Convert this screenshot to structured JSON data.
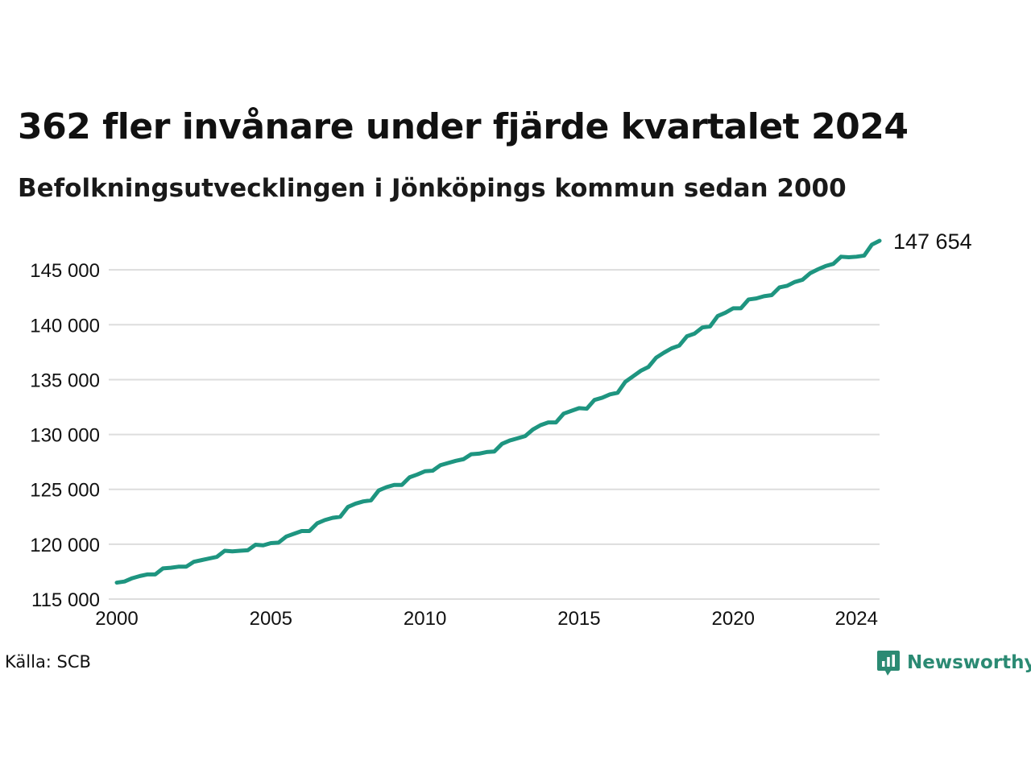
{
  "title": "362 fler invånare under fjärde kvartalet 2024",
  "subtitle": "Befolkningsutvecklingen i Jönköpings kommun sedan 2000",
  "source": "Källa: SCB",
  "logo": {
    "text": "Newsworthy",
    "icon": "newsworthy-logo-icon"
  },
  "colors": {
    "line": "#1e9580",
    "grid": "#dddddd",
    "logo": "#2b8a73"
  },
  "chart_data": {
    "type": "line",
    "title": "362 fler invånare under fjärde kvartalet 2024",
    "subtitle": "Befolkningsutvecklingen i Jönköpings kommun sedan 2000",
    "xlabel": "",
    "ylabel": "",
    "xlim": [
      2000.0,
      2024.75
    ],
    "ylim": [
      115000,
      147654
    ],
    "grid": "horizontal",
    "x_ticks": [
      {
        "value": 2000,
        "label": "2000"
      },
      {
        "value": 2005,
        "label": "2005"
      },
      {
        "value": 2010,
        "label": "2010"
      },
      {
        "value": 2015,
        "label": "2015"
      },
      {
        "value": 2020,
        "label": "2020"
      },
      {
        "value": 2024,
        "label": "2024"
      }
    ],
    "y_ticks": [
      {
        "value": 115000,
        "label": "115 000"
      },
      {
        "value": 120000,
        "label": "120 000"
      },
      {
        "value": 125000,
        "label": "125 000"
      },
      {
        "value": 130000,
        "label": "130 000"
      },
      {
        "value": 135000,
        "label": "135 000"
      },
      {
        "value": 140000,
        "label": "140 000"
      },
      {
        "value": 145000,
        "label": "145 000"
      }
    ],
    "end_label": "147 654",
    "x": [
      2000.0,
      2000.25,
      2000.5,
      2000.75,
      2001.0,
      2001.25,
      2001.5,
      2001.75,
      2002.0,
      2002.25,
      2002.5,
      2002.75,
      2003.0,
      2003.25,
      2003.5,
      2003.75,
      2004.0,
      2004.25,
      2004.5,
      2004.75,
      2005.0,
      2005.25,
      2005.5,
      2005.75,
      2006.0,
      2006.25,
      2006.5,
      2006.75,
      2007.0,
      2007.25,
      2007.5,
      2007.75,
      2008.0,
      2008.25,
      2008.5,
      2008.75,
      2009.0,
      2009.25,
      2009.5,
      2009.75,
      2010.0,
      2010.25,
      2010.5,
      2010.75,
      2011.0,
      2011.25,
      2011.5,
      2011.75,
      2012.0,
      2012.25,
      2012.5,
      2012.75,
      2013.0,
      2013.25,
      2013.5,
      2013.75,
      2014.0,
      2014.25,
      2014.5,
      2014.75,
      2015.0,
      2015.25,
      2015.5,
      2015.75,
      2016.0,
      2016.25,
      2016.5,
      2016.75,
      2017.0,
      2017.25,
      2017.5,
      2017.75,
      2018.0,
      2018.25,
      2018.5,
      2018.75,
      2019.0,
      2019.25,
      2019.5,
      2019.75,
      2020.0,
      2020.25,
      2020.5,
      2020.75,
      2021.0,
      2021.25,
      2021.5,
      2021.75,
      2022.0,
      2022.25,
      2022.5,
      2022.75,
      2023.0,
      2023.25,
      2023.5,
      2023.75,
      2024.0,
      2024.25,
      2024.5,
      2024.75
    ],
    "series": [
      {
        "values": [
          116500,
          116600,
          116900,
          117100,
          117250,
          117250,
          117800,
          117850,
          117950,
          117950,
          118400,
          118550,
          118700,
          118850,
          119400,
          119350,
          119400,
          119450,
          119950,
          119900,
          120100,
          120150,
          120700,
          120950,
          121200,
          121200,
          121900,
          122200,
          122400,
          122500,
          123400,
          123700,
          123900,
          124000,
          124900,
          125200,
          125400,
          125400,
          126100,
          126350,
          126650,
          126700,
          127200,
          127400,
          127600,
          127750,
          128200,
          128250,
          128400,
          128450,
          129150,
          129450,
          129650,
          129850,
          130450,
          130850,
          131100,
          131100,
          131900,
          132150,
          132400,
          132350,
          133150,
          133350,
          133650,
          133800,
          134800,
          135300,
          135800,
          136150,
          137000,
          137450,
          137850,
          138100,
          138950,
          139200,
          139750,
          139850,
          140800,
          141100,
          141500,
          141500,
          142300,
          142400,
          142600,
          142700,
          143400,
          143550,
          143900,
          144100,
          144700,
          145050,
          145350,
          145550,
          146200,
          146150,
          146200,
          146300,
          147300,
          147654
        ]
      }
    ]
  }
}
